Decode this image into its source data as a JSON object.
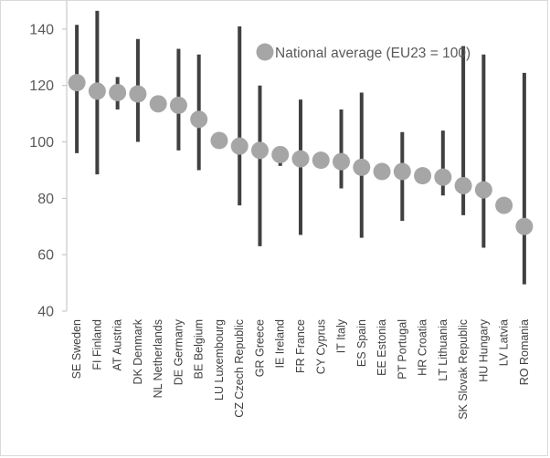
{
  "top_text": "",
  "chart_data": {
    "type": "scatter",
    "title": "",
    "xlabel": "",
    "ylabel": "",
    "ylim": [
      40,
      150
    ],
    "yticks": [
      40,
      60,
      80,
      100,
      120,
      140
    ],
    "grid": false,
    "legend_position": "top-right",
    "colors": {
      "marker": "#a6a6a6",
      "range_bar": "#404040",
      "axis": "#bfbfbf",
      "text": "#595959"
    },
    "categories": [
      "SE Sweden",
      "FI Finland",
      "AT Austria",
      "DK Denmark",
      "NL Netherlands",
      "DE Germany",
      "BE Belgium",
      "LU Luxembourg",
      "CZ Czech Republic",
      "GR Greece",
      "IE Ireland",
      "FR France",
      "CY Cyprus",
      "IT Italy",
      "ES Spain",
      "EE Estonia",
      "PT Portugal",
      "HR Croatia",
      "LT Lithuania",
      "SK Slovak Republic",
      "HU Hungary",
      "LV Latvia",
      "RO Romania"
    ],
    "series": [
      {
        "name": "National average (EU23 = 100)",
        "values": [
          121,
          118,
          117.5,
          117,
          113.5,
          113,
          108,
          100.5,
          98.5,
          97,
          95.5,
          94,
          93.5,
          93,
          91,
          89.5,
          89.5,
          88,
          87.5,
          84.5,
          83,
          77.5,
          70
        ]
      }
    ],
    "ranges": [
      [
        96,
        141.5
      ],
      [
        88.5,
        146.5
      ],
      [
        111.5,
        123
      ],
      [
        100,
        136.5
      ],
      null,
      [
        97,
        133
      ],
      [
        90,
        131
      ],
      null,
      [
        77.5,
        141
      ],
      [
        63,
        120
      ],
      [
        91.5,
        96
      ],
      [
        67,
        115
      ],
      null,
      [
        83.5,
        111.5
      ],
      [
        66,
        117.5
      ],
      null,
      [
        72,
        103.5
      ],
      null,
      [
        81,
        104
      ],
      [
        74,
        134
      ],
      [
        62.5,
        131
      ],
      null,
      [
        49.5,
        124.5
      ]
    ]
  }
}
